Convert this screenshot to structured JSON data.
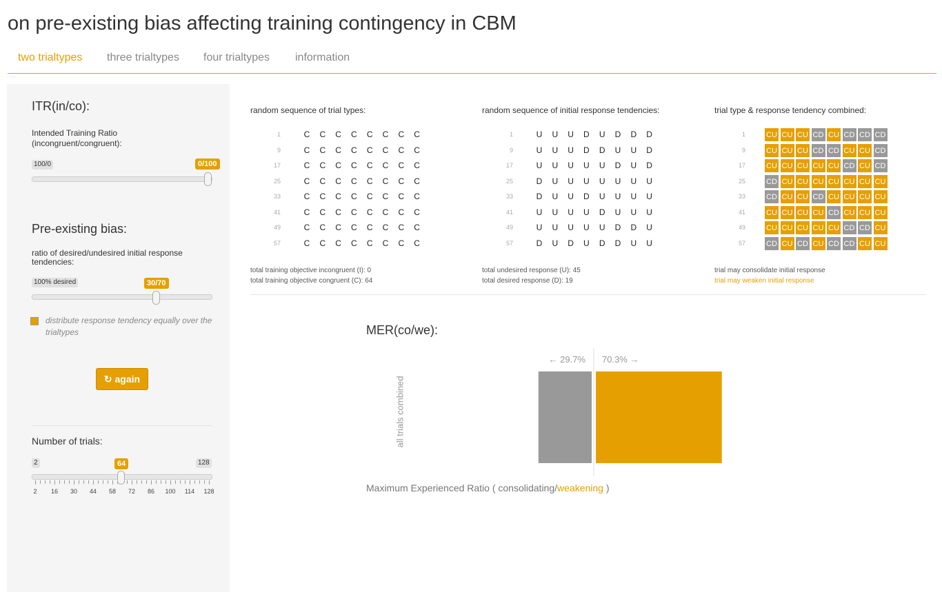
{
  "page": {
    "title": "on pre-existing bias affecting training contingency in CBM"
  },
  "tabs": [
    {
      "label": "two trialtypes",
      "active": true
    },
    {
      "label": "three trialtypes",
      "active": false
    },
    {
      "label": "four trialtypes",
      "active": false
    },
    {
      "label": "information",
      "active": false
    }
  ],
  "sidebar": {
    "itr": {
      "heading": "ITR(in/co):",
      "label": "Intended Training Ratio (incongruent/congruent):",
      "min_label": "100/0",
      "value_label": "0/100",
      "value_fraction": 1.0
    },
    "bias": {
      "heading": "Pre-existing bias:",
      "label": "ratio of desired/undesired initial response tendencies:",
      "min_label": "100% desired",
      "value_label": "30/70",
      "value_fraction": 0.7
    },
    "distribute": {
      "label": "distribute response tendency equally over the trialtypes",
      "checked": true
    },
    "again_button": {
      "label": "again"
    },
    "trials": {
      "heading": "Number of trials:",
      "min_label": "2",
      "max_label": "128",
      "value_label": "64",
      "value": 64,
      "min": 2,
      "max": 128,
      "grid_labels": [
        "2",
        "16",
        "30",
        "44",
        "58",
        "72",
        "86",
        "100",
        "114",
        "128"
      ]
    }
  },
  "sequences": {
    "row_indices": [
      "1",
      "9",
      "17",
      "25",
      "33",
      "41",
      "49",
      "57"
    ],
    "trial_types": {
      "title": "random sequence of trial types:",
      "rows": [
        [
          "C",
          "C",
          "C",
          "C",
          "C",
          "C",
          "C",
          "C"
        ],
        [
          "C",
          "C",
          "C",
          "C",
          "C",
          "C",
          "C",
          "C"
        ],
        [
          "C",
          "C",
          "C",
          "C",
          "C",
          "C",
          "C",
          "C"
        ],
        [
          "C",
          "C",
          "C",
          "C",
          "C",
          "C",
          "C",
          "C"
        ],
        [
          "C",
          "C",
          "C",
          "C",
          "C",
          "C",
          "C",
          "C"
        ],
        [
          "C",
          "C",
          "C",
          "C",
          "C",
          "C",
          "C",
          "C"
        ],
        [
          "C",
          "C",
          "C",
          "C",
          "C",
          "C",
          "C",
          "C"
        ],
        [
          "C",
          "C",
          "C",
          "C",
          "C",
          "C",
          "C",
          "C"
        ]
      ],
      "footer": [
        "total training objective incongruent (I): 0",
        "total training objective congruent (C): 64"
      ]
    },
    "responses": {
      "title": "random sequence of initial response tendencies:",
      "rows": [
        [
          "U",
          "U",
          "U",
          "D",
          "U",
          "D",
          "D",
          "D"
        ],
        [
          "U",
          "U",
          "U",
          "D",
          "D",
          "U",
          "U",
          "D"
        ],
        [
          "U",
          "U",
          "U",
          "U",
          "U",
          "D",
          "U",
          "D"
        ],
        [
          "D",
          "U",
          "U",
          "U",
          "U",
          "U",
          "U",
          "U"
        ],
        [
          "D",
          "U",
          "U",
          "D",
          "U",
          "U",
          "U",
          "U"
        ],
        [
          "U",
          "U",
          "U",
          "U",
          "D",
          "U",
          "U",
          "U"
        ],
        [
          "U",
          "U",
          "U",
          "U",
          "U",
          "D",
          "D",
          "U"
        ],
        [
          "D",
          "U",
          "D",
          "U",
          "D",
          "D",
          "U",
          "U"
        ]
      ],
      "footer": [
        "total undesired response (U): 45",
        "total desired response (D): 19"
      ]
    },
    "combined": {
      "title": "trial type & response tendency combined:",
      "rows": [
        [
          "CU",
          "CU",
          "CU",
          "CD",
          "CU",
          "CD",
          "CD",
          "CD"
        ],
        [
          "CU",
          "CU",
          "CU",
          "CD",
          "CD",
          "CU",
          "CU",
          "CD"
        ],
        [
          "CU",
          "CU",
          "CU",
          "CU",
          "CU",
          "CD",
          "CU",
          "CD"
        ],
        [
          "CD",
          "CU",
          "CU",
          "CU",
          "CU",
          "CU",
          "CU",
          "CU"
        ],
        [
          "CD",
          "CU",
          "CU",
          "CD",
          "CU",
          "CU",
          "CU",
          "CU"
        ],
        [
          "CU",
          "CU",
          "CU",
          "CU",
          "CD",
          "CU",
          "CU",
          "CU"
        ],
        [
          "CU",
          "CU",
          "CU",
          "CU",
          "CU",
          "CD",
          "CD",
          "CU"
        ],
        [
          "CD",
          "CU",
          "CD",
          "CU",
          "CD",
          "CD",
          "CU",
          "CU"
        ]
      ],
      "legend": [
        "trial may consolidate initial response",
        "trial may weaken initial response"
      ]
    }
  },
  "colors": {
    "accent": "#E69F00",
    "consolidate": "#999999",
    "weaken": "#E69F00"
  },
  "mer": {
    "title": "MER(co/we):",
    "y_label": "all trials combined",
    "caption_prefix": "Maximum Experienced Ratio ( consolidating/",
    "caption_accent": "weakening",
    "caption_suffix": " )"
  },
  "chart_data": {
    "type": "bar",
    "categories": [
      "all trials combined"
    ],
    "series": [
      {
        "name": "consolidating",
        "values": [
          29.7
        ],
        "label": "← 29.7%"
      },
      {
        "name": "weakening",
        "values": [
          70.3
        ],
        "label": "70.3% →"
      }
    ],
    "ylabel": "all trials combined",
    "xlabel": "Maximum Experienced Ratio ( consolidating/weakening )"
  }
}
